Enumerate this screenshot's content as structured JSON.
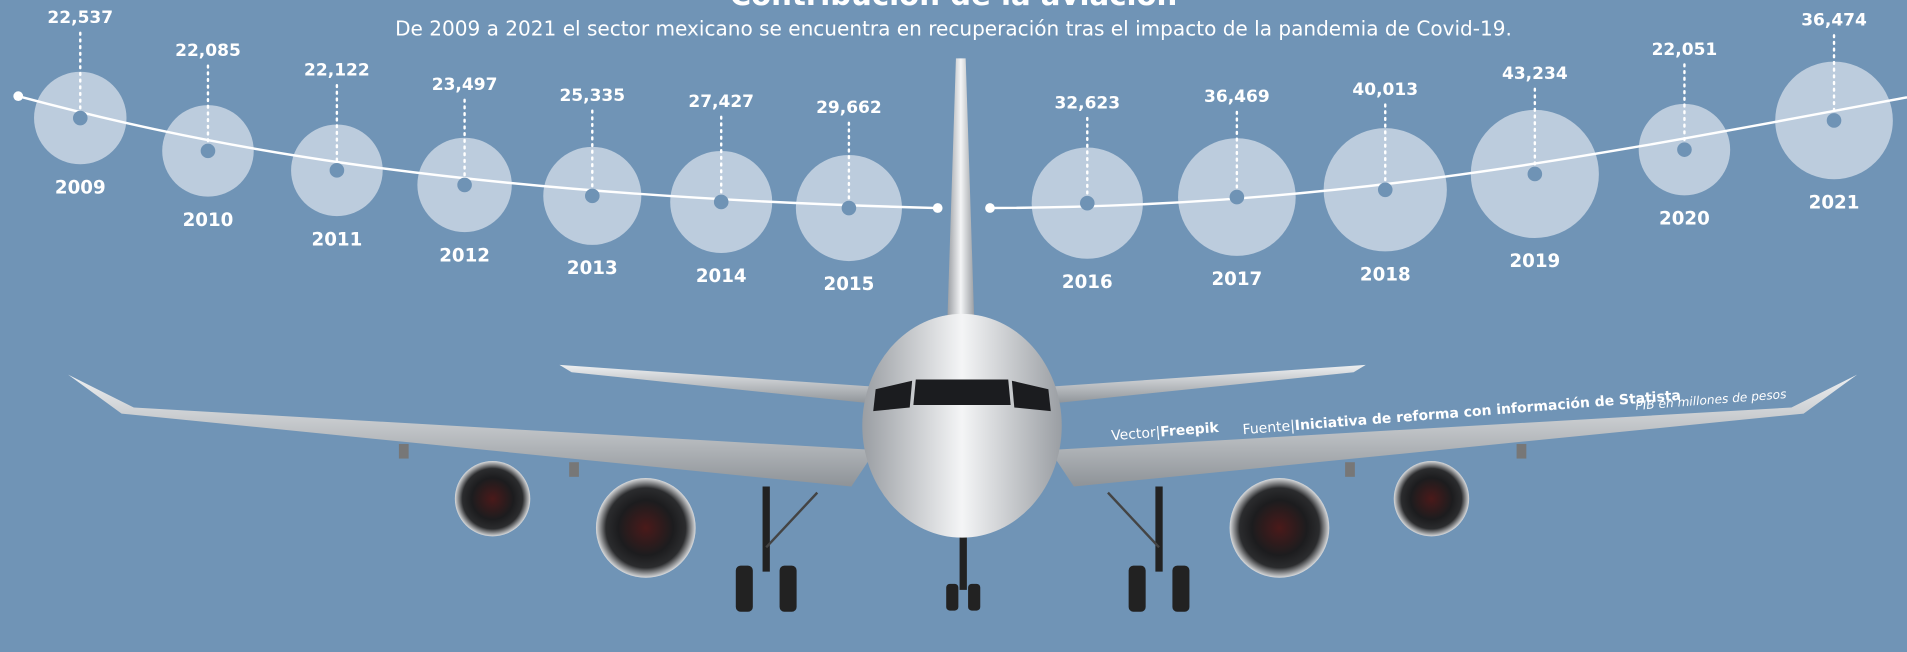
{
  "chart_data": {
    "type": "bubble",
    "title": "Contribución de la aviación",
    "subtitle": "De 2009 a 2021 el sector mexicano se encuentra en recuperación tras el impacto de la pandemia de Covid-19.",
    "categories": [
      "2009",
      "2010",
      "2011",
      "2012",
      "2013",
      "2014",
      "2015",
      "2016",
      "2017",
      "2018",
      "2019",
      "2020",
      "2021"
    ],
    "values": [
      22537,
      22085,
      22122,
      23497,
      25335,
      27427,
      29662,
      32623,
      36469,
      40013,
      43234,
      22051,
      36474
    ],
    "value_labels": [
      "22,537",
      "22,085",
      "22,122",
      "23,497",
      "25,335",
      "27,427",
      "29,662",
      "32,623",
      "36,469",
      "40,013",
      "43,234",
      "22,051",
      "36,474"
    ],
    "color": "#c9d6e4",
    "unit_note": "PIB en millones de pesos",
    "credit": {
      "label": "Vector|",
      "text": "Freepik"
    },
    "source": {
      "label": "Fuente|",
      "text": "Iniciativa de reforma con información de Statista"
    }
  }
}
